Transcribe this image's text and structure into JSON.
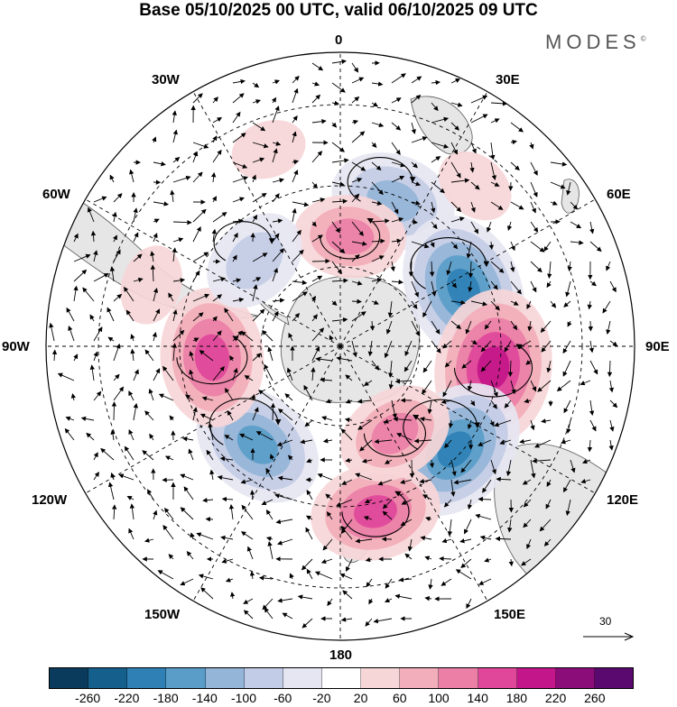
{
  "title": "Base 05/10/2025 00 UTC, valid 06/10/2025 09 UTC",
  "brand": "MODES",
  "brand_mark": "©",
  "longitude_labels": {
    "top": "0",
    "bottom": "180",
    "left": "90W",
    "right": "90E",
    "w30": "30W",
    "e30": "30E",
    "w60": "60W",
    "e60": "60E",
    "w120": "120W",
    "e120": "120E",
    "w150": "150W",
    "e150": "150E"
  },
  "reference_vector": {
    "value": "30"
  },
  "colorbar": {
    "colors": [
      "#0b3b5c",
      "#155f8c",
      "#2f80b5",
      "#5a9dc9",
      "#94b5d8",
      "#c3cce6",
      "#e6e6f2",
      "#ffffff",
      "#f7d6d8",
      "#f2aeba",
      "#ec7fa6",
      "#e0469a",
      "#c3168a",
      "#8a0d7a",
      "#5a0a6e"
    ],
    "labels": [
      "-260",
      "-220",
      "-180",
      "-140",
      "-100",
      "-60",
      "-20",
      "20",
      "60",
      "100",
      "140",
      "180",
      "220",
      "260"
    ]
  },
  "colors": {
    "land": "#e6e6e6",
    "coast": "#555555",
    "grid": "#000000"
  },
  "anomaly_centers": [
    {
      "lon_deg": 20,
      "lat": -48,
      "value": -140,
      "name": "neg-0"
    },
    {
      "lon_deg": 5,
      "lat": -60,
      "value": 110,
      "name": "pos-0"
    },
    {
      "lon_deg": 65,
      "lat": -53,
      "value": -200,
      "name": "neg-60E"
    },
    {
      "lon_deg": 98,
      "lat": -48,
      "value": 210,
      "name": "pos-90E"
    },
    {
      "lon_deg": 132,
      "lat": -48,
      "value": -190,
      "name": "neg-130E"
    },
    {
      "lon_deg": 168,
      "lat": -44,
      "value": 150,
      "name": "pos-170E"
    },
    {
      "lon_deg": 148,
      "lat": -62,
      "value": 120,
      "name": "pos-150E-inner"
    },
    {
      "lon_deg": -140,
      "lat": -55,
      "value": -160,
      "name": "neg-140W"
    },
    {
      "lon_deg": -95,
      "lat": -55,
      "value": 170,
      "name": "pos-95W"
    },
    {
      "lon_deg": -45,
      "lat": -57,
      "value": -100,
      "name": "neg-45W"
    },
    {
      "lon_deg": -72,
      "lat": -36,
      "value": 40,
      "name": "pos-70W"
    },
    {
      "lon_deg": -20,
      "lat": -33,
      "value": 30,
      "name": "pos-20W"
    },
    {
      "lon_deg": 40,
      "lat": -33,
      "value": 40,
      "name": "pos-40E"
    }
  ]
}
